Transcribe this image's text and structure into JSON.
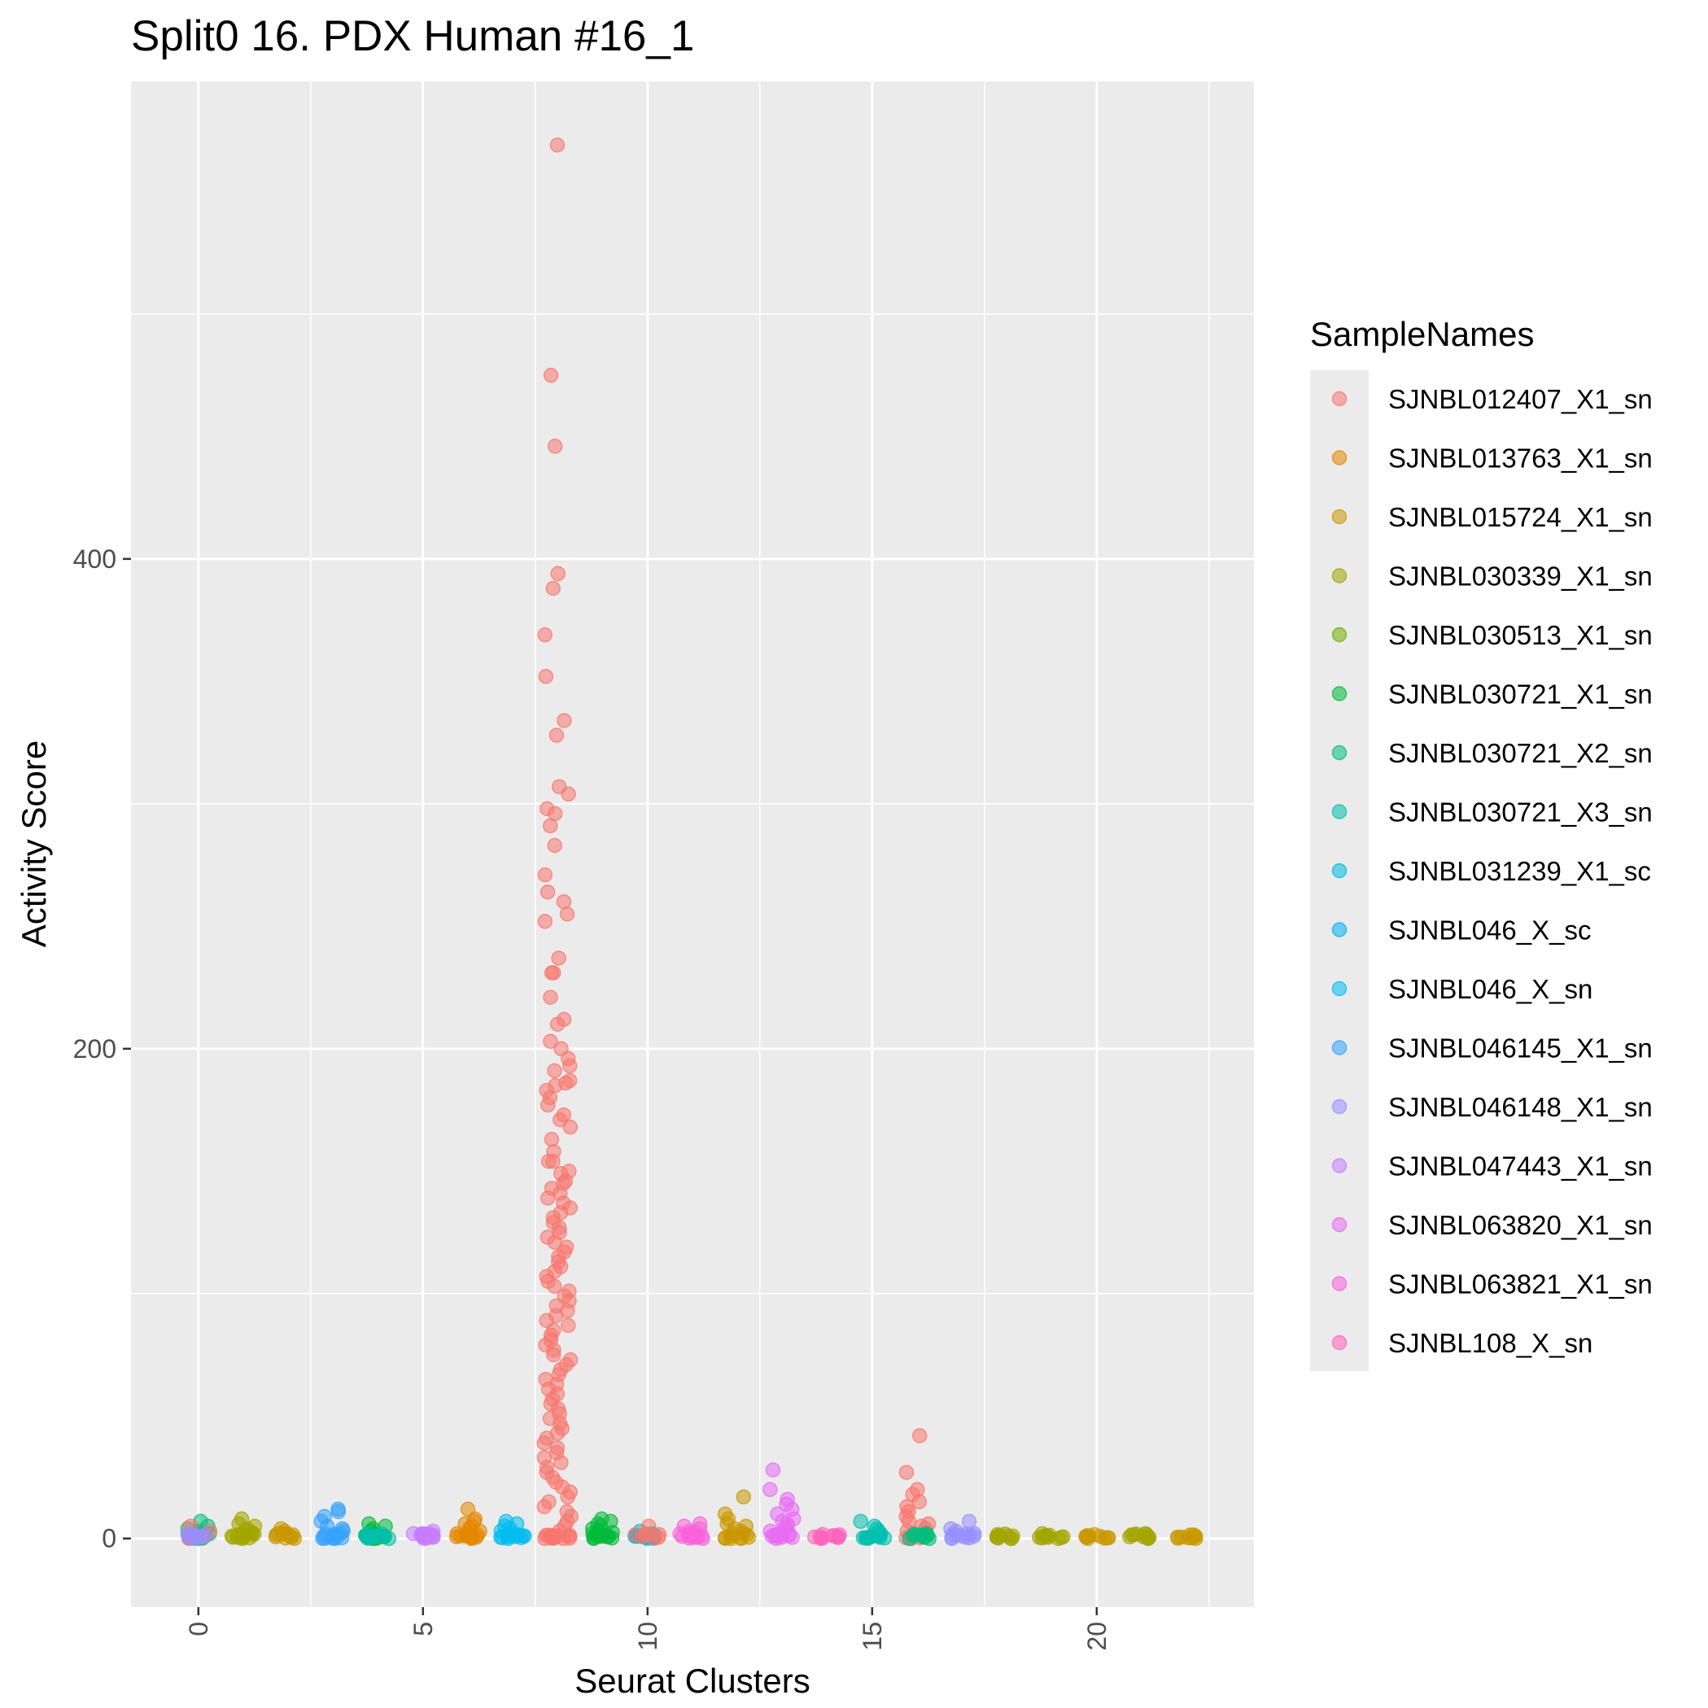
{
  "chart_data": {
    "type": "scatter",
    "title": "Split0 16. PDX Human #16_1",
    "xlabel": "Seurat Clusters",
    "ylabel": "Activity Score",
    "xlim": [
      -1.5,
      23.5
    ],
    "ylim": [
      -28,
      595
    ],
    "x_major_ticks": [
      0,
      5,
      10,
      15,
      20
    ],
    "x_tick_labels": [
      "0",
      "5",
      "10",
      "15",
      "20"
    ],
    "y_major_ticks": [
      0,
      200,
      400
    ],
    "y_tick_labels": [
      "0",
      "200",
      "400"
    ],
    "y_minor_ticks": [
      100,
      300,
      500
    ],
    "x_minor_ticks": [
      2.5,
      7.5,
      12.5,
      17.5,
      22.5
    ],
    "grid": true,
    "legend": {
      "title": "SampleNames",
      "position": "right",
      "entries": [
        {
          "name": "SJNBL012407_X1_sn",
          "color": "#F8766D"
        },
        {
          "name": "SJNBL013763_X1_sn",
          "color": "#E58700"
        },
        {
          "name": "SJNBL015724_X1_sn",
          "color": "#C99800"
        },
        {
          "name": "SJNBL030339_X1_sn",
          "color": "#A3A500"
        },
        {
          "name": "SJNBL030513_X1_sn",
          "color": "#6BB100"
        },
        {
          "name": "SJNBL030721_X1_sn",
          "color": "#00BA38"
        },
        {
          "name": "SJNBL030721_X2_sn",
          "color": "#00BF7D"
        },
        {
          "name": "SJNBL030721_X3_sn",
          "color": "#00C0AF"
        },
        {
          "name": "SJNBL031239_X1_sc",
          "color": "#00BCD8"
        },
        {
          "name": "SJNBL046_X_sc",
          "color": "#00B0F6"
        },
        {
          "name": "SJNBL046_X_sn",
          "color": "#00BCF0"
        },
        {
          "name": "SJNBL046145_X1_sn",
          "color": "#35A2FF"
        },
        {
          "name": "SJNBL046148_X1_sn",
          "color": "#9590FF"
        },
        {
          "name": "SJNBL047443_X1_sn",
          "color": "#C77CFF"
        },
        {
          "name": "SJNBL063820_X1_sn",
          "color": "#E76BF3"
        },
        {
          "name": "SJNBL063821_X1_sn",
          "color": "#FA62DB"
        },
        {
          "name": "SJNBL108_X_sn",
          "color": "#FF62BC"
        }
      ]
    },
    "series": [
      {
        "cluster": 0,
        "sample": "SJNBL030721_X2_sn",
        "color": "#00BF7D",
        "values": [
          0,
          0.5,
          1,
          1.5,
          2,
          3,
          4,
          5,
          7,
          0.2,
          0.8,
          1.2
        ]
      },
      {
        "cluster": 0,
        "sample": "SJNBL012407_X1_sn",
        "color": "#F8766D",
        "values": [
          0,
          1,
          3,
          5
        ]
      },
      {
        "cluster": 0,
        "sample": "SJNBL046148_X1_sn",
        "color": "#9590FF",
        "values": [
          0,
          1
        ]
      },
      {
        "cluster": 1,
        "sample": "SJNBL030339_X1_sn",
        "color": "#A3A500",
        "values": [
          0,
          0.5,
          1,
          2,
          3,
          4,
          5,
          6,
          8,
          0.3,
          1.5,
          2.5
        ]
      },
      {
        "cluster": 2,
        "sample": "SJNBL015724_X1_sn",
        "color": "#C99800",
        "values": [
          0,
          0.5,
          1,
          1.5,
          2,
          3,
          4,
          0.2
        ]
      },
      {
        "cluster": 3,
        "sample": "SJNBL046145_X1_sn",
        "color": "#35A2FF",
        "values": [
          0,
          0.5,
          1,
          2,
          3,
          5,
          7,
          9,
          11,
          12,
          1.5,
          4
        ]
      },
      {
        "cluster": 4,
        "sample": "SJNBL030721_X1_sn",
        "color": "#00BA38",
        "values": [
          0,
          0.5,
          1,
          2,
          3,
          4,
          5,
          6,
          0.3
        ]
      },
      {
        "cluster": 4,
        "sample": "SJNBL030721_X3_sn",
        "color": "#00C0AF",
        "values": [
          0,
          1,
          2
        ]
      },
      {
        "cluster": 5,
        "sample": "SJNBL047443_X1_sn",
        "color": "#C77CFF",
        "values": [
          0,
          0.5,
          1,
          1.5,
          2,
          3,
          0.2,
          0.8
        ]
      },
      {
        "cluster": 6,
        "sample": "SJNBL013763_X1_sn",
        "color": "#E58700",
        "values": [
          0,
          0.5,
          1,
          2,
          3,
          4,
          5,
          6,
          7,
          8,
          12,
          1.5
        ]
      },
      {
        "cluster": 7,
        "sample": "SJNBL046_X_sn",
        "color": "#00BCF0",
        "values": [
          0,
          0.5,
          1,
          2,
          3,
          4,
          5,
          6,
          7,
          1.5
        ]
      },
      {
        "cluster": 8,
        "sample": "SJNBL012407_X1_sn",
        "color": "#F8766D",
        "values": [
          569,
          475,
          446,
          394,
          388,
          369,
          352,
          334,
          328,
          307,
          304,
          298,
          296,
          291,
          283,
          271,
          264,
          260,
          255,
          252,
          237,
          231,
          231,
          221,
          212,
          210,
          203,
          200,
          196,
          193,
          191,
          187,
          186,
          185,
          183,
          180,
          177,
          173,
          171,
          168,
          163,
          158,
          154,
          154,
          150,
          149,
          146,
          145,
          143,
          141,
          139,
          137,
          135,
          133,
          131,
          129,
          127,
          125,
          123,
          121,
          119,
          117,
          115,
          113,
          111,
          109,
          107,
          105,
          103,
          101,
          99,
          97,
          95,
          93,
          91,
          89,
          87,
          85,
          83,
          81,
          79,
          77,
          75,
          73,
          71,
          69,
          67,
          65,
          63,
          61,
          59,
          57,
          55,
          53,
          51,
          49,
          47,
          45,
          43,
          41,
          39,
          37,
          35,
          33,
          31,
          29,
          27,
          25,
          23,
          21,
          19,
          17,
          15,
          13,
          11,
          9,
          7,
          5,
          3,
          1,
          0
        ]
      },
      {
        "cluster": 9,
        "sample": "SJNBL030721_X1_sn",
        "color": "#00BA38",
        "values": [
          0,
          0.5,
          1,
          2,
          3,
          4,
          5,
          6,
          7,
          8,
          1.5,
          2.5
        ]
      },
      {
        "cluster": 10,
        "sample": "SJNBL031239_X1_sc",
        "color": "#00BCD8",
        "values": [
          0,
          0.5,
          1,
          1.5,
          2,
          3,
          0.2
        ]
      },
      {
        "cluster": 10,
        "sample": "SJNBL012407_X1_sn",
        "color": "#F8766D",
        "values": [
          2,
          5
        ]
      },
      {
        "cluster": 11,
        "sample": "SJNBL063821_X1_sn",
        "color": "#FA62DB",
        "values": [
          0,
          0.5,
          1,
          2,
          3,
          4,
          5,
          6,
          1.5,
          2.5
        ]
      },
      {
        "cluster": 12,
        "sample": "SJNBL015724_X1_sn",
        "color": "#C99800",
        "values": [
          0,
          0.5,
          1,
          2,
          3,
          4,
          5,
          6,
          8,
          10,
          17,
          1.5
        ]
      },
      {
        "cluster": 13,
        "sample": "SJNBL063820_X1_sn",
        "color": "#E76BF3",
        "values": [
          0,
          0.5,
          1,
          2,
          3,
          4,
          5,
          6,
          8,
          10,
          12,
          14,
          16,
          20,
          28,
          1.5,
          7
        ]
      },
      {
        "cluster": 14,
        "sample": "SJNBL108_X_sn",
        "color": "#FF62BC",
        "values": [
          0,
          0.2,
          0.4,
          0.6
        ]
      },
      {
        "cluster": 15,
        "sample": "SJNBL030721_X3_sn",
        "color": "#00C0AF",
        "values": [
          0,
          0.5,
          1,
          2,
          3,
          4,
          5,
          7,
          1.5
        ]
      },
      {
        "cluster": 16,
        "sample": "SJNBL012407_X1_sn",
        "color": "#F8766D",
        "values": [
          0,
          1,
          2,
          3,
          5,
          7,
          9,
          11,
          13,
          15,
          18,
          20,
          27,
          42,
          4,
          6
        ]
      },
      {
        "cluster": 16,
        "sample": "SJNBL030721_X2_sn",
        "color": "#00BF7D",
        "values": [
          0,
          0.5,
          1,
          2
        ]
      },
      {
        "cluster": 17,
        "sample": "SJNBL046148_X1_sn",
        "color": "#9590FF",
        "values": [
          0,
          0.5,
          1,
          2,
          3,
          4,
          7,
          1.5
        ]
      },
      {
        "cluster": 18,
        "sample": "SJNBL030339_X1_sn",
        "color": "#A3A500",
        "values": [
          0,
          0.5,
          1,
          0.2
        ]
      },
      {
        "cluster": 19,
        "sample": "SJNBL030339_X1_sn",
        "color": "#A3A500",
        "values": [
          0,
          0.5,
          1,
          2,
          0.2
        ]
      },
      {
        "cluster": 20,
        "sample": "SJNBL015724_X1_sn",
        "color": "#C99800",
        "values": [
          0,
          0.3,
          0.6,
          0.1
        ]
      },
      {
        "cluster": 21,
        "sample": "SJNBL030339_X1_sn",
        "color": "#A3A500",
        "values": [
          0,
          0.5,
          1,
          1.5,
          0.2
        ]
      },
      {
        "cluster": 22,
        "sample": "SJNBL015724_X1_sn",
        "color": "#C99800",
        "values": [
          0,
          0.3,
          0.6,
          0.1
        ]
      }
    ]
  }
}
